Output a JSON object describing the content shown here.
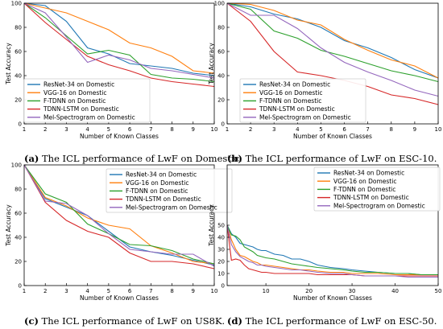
{
  "chart_data": [
    {
      "type": "line",
      "caption_label": "(a)",
      "caption_text": "The ICL performance of LwF on Domestic.",
      "xlabel": "Number of Known Classes",
      "ylabel": "Test Accuracy",
      "xlim": [
        1,
        10
      ],
      "ylim": [
        0,
        100
      ],
      "xticks": [
        1,
        2,
        3,
        4,
        5,
        6,
        7,
        8,
        9,
        10
      ],
      "yticks": [
        0,
        20,
        40,
        60,
        80,
        100
      ],
      "legend_position": "bottom-left",
      "x": [
        1,
        2,
        3,
        4,
        5,
        6,
        7,
        8,
        9,
        10
      ],
      "series": [
        {
          "name": "ResNet-34 on Domestic",
          "color": "#1f77b4",
          "values": [
            100,
            98,
            85,
            63,
            58,
            50,
            48,
            46,
            42,
            40
          ]
        },
        {
          "name": "VGG-16 on Domestic",
          "color": "#ff7f0e",
          "values": [
            100,
            96,
            92,
            85,
            78,
            67,
            63,
            56,
            44,
            42
          ]
        },
        {
          "name": "F-TDNN on Domestic",
          "color": "#2ca02c",
          "values": [
            100,
            88,
            73,
            58,
            61,
            57,
            41,
            38,
            37,
            35
          ]
        },
        {
          "name": "TDNN-LSTM on Domestic",
          "color": "#d62728",
          "values": [
            100,
            84,
            70,
            56,
            49,
            44,
            38,
            35,
            33,
            31
          ]
        },
        {
          "name": "Mel-Spectrogram on Domestic",
          "color": "#9467bd",
          "values": [
            100,
            92,
            72,
            51,
            57,
            53,
            46,
            44,
            41,
            38
          ]
        }
      ]
    },
    {
      "type": "line",
      "caption_label": "(b)",
      "caption_text": "The ICL performance of LwF on ESC-10.",
      "xlabel": "Number of Known Classes",
      "ylabel": "Test Accuracy",
      "xlim": [
        1,
        10
      ],
      "ylim": [
        0,
        100
      ],
      "xticks": [
        1,
        2,
        3,
        4,
        5,
        6,
        7,
        8,
        9,
        10
      ],
      "yticks": [
        0,
        20,
        40,
        60,
        80,
        100
      ],
      "legend_position": "bottom-left",
      "x": [
        1,
        2,
        3,
        4,
        5,
        6,
        7,
        8,
        9,
        10
      ],
      "series": [
        {
          "name": "ResNet-34 on Domestic",
          "color": "#1f77b4",
          "values": [
            100,
            97,
            91,
            87,
            80,
            69,
            63,
            55,
            45,
            38
          ]
        },
        {
          "name": "VGG-16 on Domestic",
          "color": "#ff7f0e",
          "values": [
            100,
            99,
            94,
            86,
            82,
            70,
            61,
            53,
            48,
            38
          ]
        },
        {
          "name": "F-TDNN on Domestic",
          "color": "#2ca02c",
          "values": [
            100,
            95,
            77,
            71,
            61,
            56,
            50,
            44,
            40,
            35
          ]
        },
        {
          "name": "TDNN-LSTM on Domestic",
          "color": "#d62728",
          "values": [
            100,
            85,
            60,
            43,
            40,
            36,
            31,
            24,
            21,
            16
          ]
        },
        {
          "name": "Mel-Spectrogram on Domestic",
          "color": "#9467bd",
          "values": [
            100,
            90,
            90,
            79,
            63,
            51,
            43,
            36,
            28,
            23
          ]
        }
      ]
    },
    {
      "type": "line",
      "caption_label": "(c)",
      "caption_text": "The ICL performance of LwF on US8K.",
      "xlabel": "Number of Known Classes",
      "ylabel": "Test Accuracy",
      "xlim": [
        1,
        10
      ],
      "ylim": [
        0,
        100
      ],
      "xticks": [
        1,
        2,
        3,
        4,
        5,
        6,
        7,
        8,
        9,
        10
      ],
      "yticks": [
        0,
        20,
        40,
        60,
        80,
        100
      ],
      "legend_position": "top-right",
      "x": [
        1,
        2,
        3,
        4,
        5,
        6,
        7,
        8,
        9,
        10
      ],
      "series": [
        {
          "name": "ResNet-34 on Domestic",
          "color": "#1f77b4",
          "values": [
            100,
            72,
            65,
            58,
            45,
            32,
            28,
            25,
            21,
            17
          ]
        },
        {
          "name": "VGG-16 on Domestic",
          "color": "#ff7f0e",
          "values": [
            100,
            73,
            66,
            56,
            50,
            47,
            33,
            27,
            20,
            18
          ]
        },
        {
          "name": "F-TDNN on Domestic",
          "color": "#2ca02c",
          "values": [
            100,
            76,
            69,
            51,
            43,
            34,
            33,
            29,
            22,
            18
          ]
        },
        {
          "name": "TDNN-LSTM on Domestic",
          "color": "#d62728",
          "values": [
            100,
            69,
            54,
            45,
            40,
            27,
            20,
            20,
            18,
            14
          ]
        },
        {
          "name": "Mel-Spectrogram on Domestic",
          "color": "#9467bd",
          "values": [
            100,
            70,
            68,
            58,
            43,
            30,
            28,
            26,
            26,
            16
          ]
        }
      ]
    },
    {
      "type": "line",
      "caption_label": "(d)",
      "caption_text": "The ICL performance of LwF on ESC-50.",
      "xlabel": "Number of Known Classes",
      "ylabel": "Test Accuracy",
      "xlim": [
        1,
        50
      ],
      "ylim": [
        0,
        100
      ],
      "xticks": [
        10,
        20,
        30,
        40,
        50
      ],
      "yticks": [
        0,
        10,
        20,
        30,
        40,
        50
      ],
      "legend_position": "top-right",
      "x": [
        1,
        2,
        3,
        4,
        5,
        6,
        7,
        8,
        9,
        10,
        12,
        14,
        16,
        18,
        20,
        22,
        25,
        28,
        30,
        33,
        36,
        40,
        43,
        46,
        50
      ],
      "series": [
        {
          "name": "ResNet-34 on Domestic",
          "color": "#1f77b4",
          "values": [
            50,
            43,
            40,
            35,
            34,
            33,
            32,
            30,
            29,
            29,
            26,
            25,
            22,
            22,
            20,
            17,
            15,
            14,
            13,
            12,
            11,
            10,
            10,
            9,
            9
          ]
        },
        {
          "name": "VGG-16 on Domestic",
          "color": "#ff7f0e",
          "values": [
            50,
            38,
            30,
            25,
            24,
            22,
            20,
            19,
            17,
            17,
            16,
            15,
            14,
            13,
            13,
            12,
            11,
            11,
            10,
            10,
            10,
            9,
            9,
            9,
            9
          ]
        },
        {
          "name": "F-TDNN on Domestic",
          "color": "#2ca02c",
          "values": [
            50,
            42,
            41,
            38,
            32,
            30,
            28,
            25,
            24,
            23,
            22,
            20,
            18,
            17,
            16,
            15,
            14,
            13,
            12,
            11,
            11,
            10,
            10,
            9,
            9
          ]
        },
        {
          "name": "TDNN-LSTM on Domestic",
          "color": "#d62728",
          "values": [
            50,
            21,
            22,
            21,
            17,
            14,
            13,
            12,
            11,
            11,
            10,
            10,
            10,
            10,
            10,
            9,
            9,
            9,
            9,
            8,
            8,
            8,
            8,
            8,
            8
          ]
        },
        {
          "name": "Mel-Spectrogram on Domestic",
          "color": "#9467bd",
          "values": [
            50,
            34,
            28,
            24,
            22,
            20,
            19,
            17,
            17,
            16,
            15,
            14,
            13,
            13,
            12,
            11,
            10,
            10,
            9,
            8,
            8,
            8,
            7,
            7,
            7
          ]
        }
      ]
    }
  ]
}
